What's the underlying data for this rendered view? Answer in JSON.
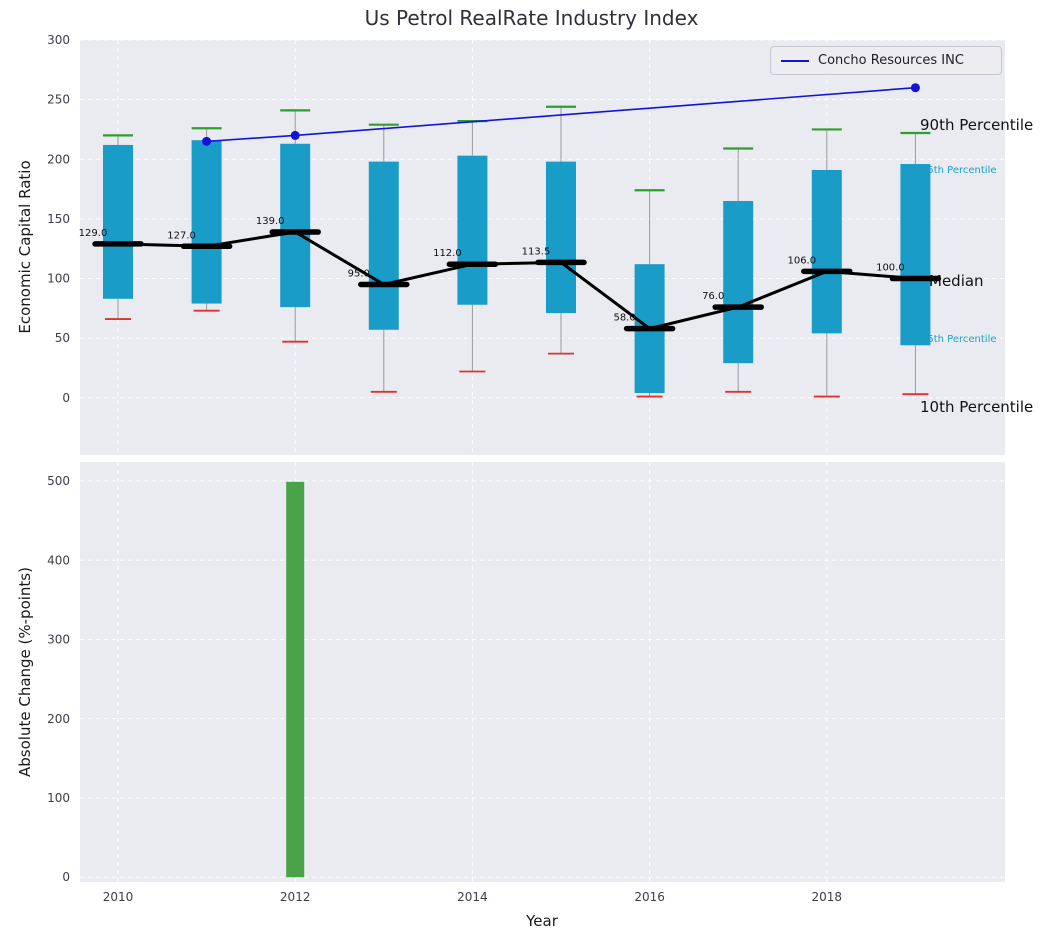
{
  "title": "Us Petrol RealRate Industry Index",
  "top_chart": {
    "ylabel": "Economic Capital Ratio",
    "legend": "Concho Resources INC",
    "annotations": {
      "p90": "90th Percentile",
      "p75": "75th Percentile",
      "median": "Median",
      "p25": "25th Percentile",
      "p10": "10th Percentile"
    }
  },
  "bottom_chart": {
    "ylabel": "Absolute Change (%-points)",
    "xlabel": "Year"
  },
  "colors": {
    "plot_bg": "#eaebf0",
    "grid": "#ffffff",
    "box_fill": "#1a9cc9",
    "p90_cap": "#2e9e2e",
    "p10_cap": "#e03131",
    "whisker": "#9a9a9a",
    "median": "#000000",
    "company_line": "#1212dd",
    "bar_fill": "#49a349"
  },
  "chart_data": [
    {
      "type": "boxplot",
      "title": "Us Petrol RealRate Industry Index",
      "ylabel": "Economic Capital Ratio",
      "ylim": [
        -48,
        300
      ],
      "yticks": [
        0,
        50,
        100,
        150,
        200,
        250,
        300
      ],
      "xticks": [
        2010,
        2012,
        2014,
        2016,
        2018
      ],
      "grid": true,
      "legend_position": "upper right",
      "years": [
        2010,
        2011,
        2012,
        2013,
        2014,
        2015,
        2016,
        2017,
        2018,
        2019
      ],
      "p10": [
        66,
        73,
        47,
        5,
        22,
        37,
        1,
        5,
        1,
        3
      ],
      "p25": [
        83,
        79,
        76,
        57,
        78,
        71,
        4,
        29,
        54,
        44
      ],
      "median": [
        129,
        127,
        139,
        95,
        112,
        113.5,
        58,
        76,
        106,
        100
      ],
      "p75": [
        212,
        216,
        213,
        198,
        203,
        198,
        112,
        165,
        191,
        196
      ],
      "p90": [
        220,
        226,
        241,
        229,
        232,
        244,
        174,
        209,
        225,
        222
      ],
      "median_labels": [
        "129.0",
        "127.0",
        "139.0",
        "95.0",
        "112.0",
        "113.5",
        "58.0",
        "76.0",
        "106.0",
        "100.0"
      ],
      "company_series": {
        "name": "Concho Resources INC",
        "x": [
          2011,
          2012,
          2019
        ],
        "y": [
          215,
          220,
          260
        ]
      }
    },
    {
      "type": "bar",
      "ylabel": "Absolute Change (%-points)",
      "xlabel": "Year",
      "ylim": [
        -6,
        524
      ],
      "yticks": [
        0,
        100,
        200,
        300,
        400,
        500
      ],
      "xticks": [
        2010,
        2012,
        2014,
        2016,
        2018
      ],
      "grid": true,
      "x": [
        2012
      ],
      "values": [
        499
      ]
    }
  ]
}
